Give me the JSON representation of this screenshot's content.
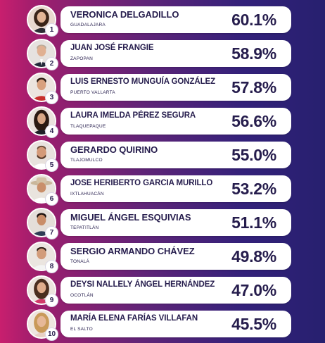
{
  "ranking": [
    {
      "rank": "1",
      "name": "VERONICA DELGADILLO",
      "city": "GUADALAJARA",
      "pct": "60.1%",
      "avatar": "woman-dark-hair"
    },
    {
      "rank": "2",
      "name": "JUAN JOSÉ FRANGIE",
      "city": "ZAPOPAN",
      "pct": "58.9%",
      "avatar": "man-suit"
    },
    {
      "rank": "3",
      "name": "LUIS ERNESTO MUNGUÍA GONZÁLEZ",
      "city": "PUERTO VALLARTA",
      "pct": "57.8%",
      "avatar": "man-red-shirt"
    },
    {
      "rank": "4",
      "name": "LAURA IMELDA PÉREZ SEGURA",
      "city": "TLAQUEPAQUE",
      "pct": "56.6%",
      "avatar": "woman-long-hair"
    },
    {
      "rank": "5",
      "name": "GERARDO QUIRINO",
      "city": "TLAJOMULCO",
      "pct": "55.0%",
      "avatar": "man-beard"
    },
    {
      "rank": "6",
      "name": "JOSE HERIBERTO GARCIA MURILLO",
      "city": "IXTLAHUACÁN",
      "pct": "53.2%",
      "avatar": "man-hat"
    },
    {
      "rank": "7",
      "name": "MIGUEL ÁNGEL ESQUIVIAS",
      "city": "TEPATITLÁN",
      "pct": "51.1%",
      "avatar": "man-short-hair"
    },
    {
      "rank": "8",
      "name": "SERGIO ARMANDO CHÁVEZ",
      "city": "TONALÁ",
      "pct": "49.8%",
      "avatar": "man-white-shirt"
    },
    {
      "rank": "9",
      "name": "DEYSI NALLELY ÁNGEL HERNÁNDEZ",
      "city": "OCOTLÁN",
      "pct": "47.0%",
      "avatar": "woman-smiling"
    },
    {
      "rank": "10",
      "name": "MARÍA ELENA FARÍAS VILLAFAN",
      "city": "EL SALTO",
      "pct": "45.5%",
      "avatar": "woman-blonde"
    }
  ]
}
